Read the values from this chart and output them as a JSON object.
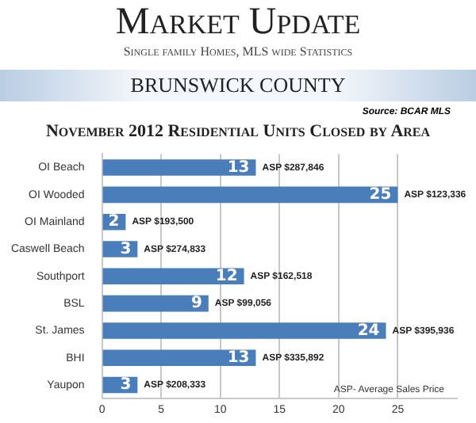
{
  "chart_data": {
    "type": "bar",
    "orientation": "horizontal",
    "title": "Market Update",
    "subtitle": "Single family Homes, MLS wide Statistics",
    "categories": [
      "OI Beach",
      "OI Wooded",
      "OI Mainland",
      "Caswell Beach",
      "Southport",
      "BSL",
      "St. James",
      "BHI",
      "Yaupon"
    ],
    "values": [
      13,
      25,
      2,
      3,
      12,
      9,
      24,
      13,
      3
    ],
    "color": "#4a7ebb",
    "data_labels": true,
    "xlim": [
      0,
      30
    ],
    "xticks": [
      0,
      5,
      10,
      15,
      20,
      25
    ],
    "grid": "x",
    "legend": false,
    "annotations": [
      "BRUNSWICK COUNTY",
      "Source: BCAR MLS",
      "November 2012 Residential Units Closed by Area",
      "ASP- Average Sales Price",
      {
        "text": "ASP $287,846",
        "x": 13,
        "y": "OI Beach"
      },
      {
        "text": "ASP $123,336",
        "x": 25,
        "y": "OI Wooded"
      },
      {
        "text": "ASP $193,500",
        "x": 2,
        "y": "OI Mainland"
      },
      {
        "text": "ASP $274,833",
        "x": 3,
        "y": "Caswell Beach"
      },
      {
        "text": "ASP $162,518",
        "x": 12,
        "y": "Southport"
      },
      {
        "text": "ASP $99,056",
        "x": 9,
        "y": "BSL"
      },
      {
        "text": "ASP $395,936",
        "x": 24,
        "y": "St. James"
      },
      {
        "text": "ASP $335,892",
        "x": 13,
        "y": "BHI"
      },
      {
        "text": "ASP $208,333",
        "x": 3,
        "y": "Yaupon"
      }
    ]
  }
}
